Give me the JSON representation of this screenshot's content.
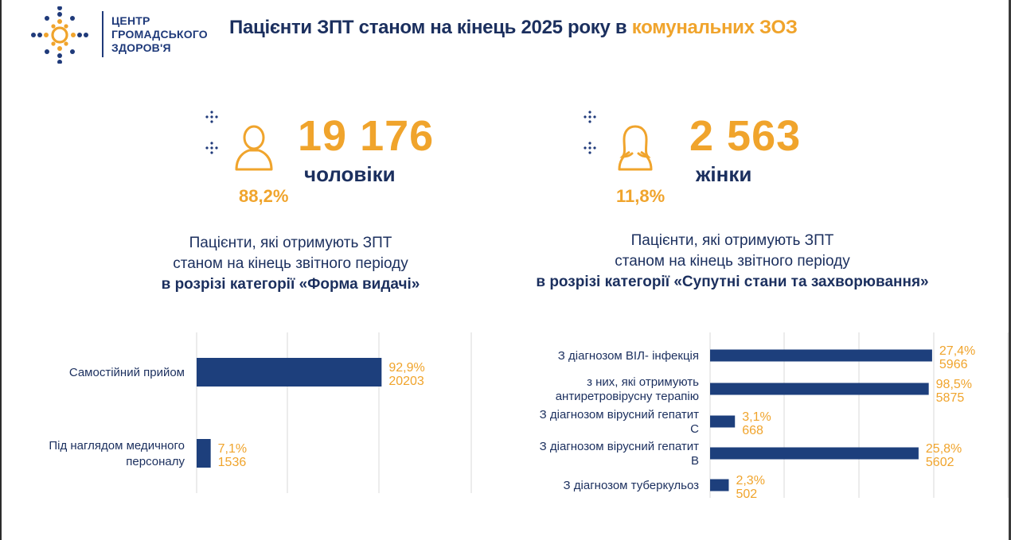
{
  "logo": {
    "lines": [
      "ЦЕНТР",
      "ГРОМАДСЬКОГО",
      "ЗДОРОВ'Я"
    ]
  },
  "header": {
    "title_main": "Пацієнти ЗПТ станом на кінець 2025 року в ",
    "title_accent": "комунальних ЗОЗ"
  },
  "men": {
    "count": "19 176",
    "label": "чоловіки",
    "percent": "88,2%",
    "icon": "male-person-icon"
  },
  "women": {
    "count": "2 563",
    "label": "жінки",
    "percent": "11,8%",
    "icon": "female-person-icon"
  },
  "left_section": {
    "line1": "Пацієнти, які отримують ЗПТ",
    "line2": "станом на кінець звітного періоду",
    "line3": "в розрізі категорії «Форма видачі»"
  },
  "right_section": {
    "line1": "Пацієнти, які отримують ЗПТ",
    "line2": "станом на кінець звітного періоду",
    "line3": "в розрізі категорії «Супутні стани та захворювання»"
  },
  "colors": {
    "navy": "#1b2f5e",
    "bar": "#1d3f7c",
    "accent": "#f0a42c",
    "grid": "#d9d9d9"
  },
  "chart_data": [
    {
      "type": "bar",
      "orientation": "horizontal",
      "categories": [
        [
          "Самостійний прийом"
        ],
        [
          "Під наглядом медичного",
          "персоналу"
        ]
      ],
      "values": [
        20203,
        1536
      ],
      "percent_labels": [
        "92,9%",
        "7,1%"
      ],
      "value_labels": [
        "20203",
        "1536"
      ],
      "xlim": [
        0,
        30000
      ],
      "grid": true
    },
    {
      "type": "bar",
      "orientation": "horizontal",
      "categories": [
        [
          "З діагнозом ВІЛ- інфекція"
        ],
        [
          "з них, які отримують",
          "антиретровірусну терапію"
        ],
        [
          "З діагнозом вірусний гепатит",
          "С"
        ],
        [
          "З діагнозом вірусний гепатит",
          "В"
        ],
        [
          "З діагнозом туберкульоз"
        ]
      ],
      "values": [
        5966,
        5875,
        668,
        5602,
        502
      ],
      "percent_labels": [
        "27,4%",
        "98,5%",
        "3,1%",
        "25,8%",
        "2,3%"
      ],
      "value_labels": [
        "5966",
        "5875",
        "668",
        "5602",
        "502"
      ],
      "xlim": [
        0,
        8000
      ],
      "grid": true
    }
  ]
}
